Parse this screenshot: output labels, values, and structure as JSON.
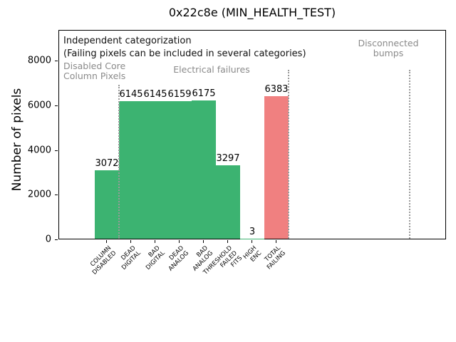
{
  "chart_data": {
    "type": "bar",
    "title": "0x22c8e (MIN_HEALTH_TEST)",
    "ylabel": "Number of pixels",
    "categories": [
      "COLUMN\nDISABLED",
      "DEAD\nDIGITAL",
      "BAD\nDIGITAL",
      "DEAD\nANALOG",
      "BAD\nANALOG",
      "THRESHOLD\nFAILED\nFITS",
      "HIGH\nENC",
      "TOTAL\nFAILING"
    ],
    "values": [
      3072,
      6145,
      6145,
      6159,
      6175,
      3297,
      3,
      6383
    ],
    "value_labels": [
      "3072",
      "6145",
      "6145",
      "6159",
      "6175",
      "3297",
      "3",
      "6383"
    ],
    "bar_colors": [
      "#3cb371",
      "#3cb371",
      "#3cb371",
      "#3cb371",
      "#3cb371",
      "#3cb371",
      "#3cb371",
      "#f08080"
    ],
    "yticks": [
      0,
      2000,
      4000,
      6000,
      8000
    ],
    "ylim": [
      0,
      9400
    ],
    "grid": false,
    "legend": null,
    "group_separators": [
      0.5,
      7.5,
      12.5
    ]
  },
  "annotations": {
    "independent": "Independent categorization",
    "failing_note": "(Failing pixels can be included in several categories)",
    "disabled_core": "Disabled Core\nColumn Pixels",
    "electrical": "Electrical failures",
    "disconnected": "Disconnected\nbumps"
  },
  "colors": {
    "bar_green": "#3cb371",
    "bar_red": "#f08080",
    "annotation_gray": "#8a8a8a",
    "separator_gray": "#9a9a9a",
    "axis_black": "#000000"
  }
}
